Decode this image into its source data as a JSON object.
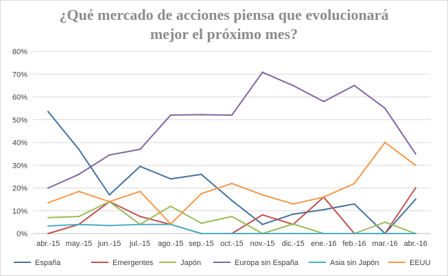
{
  "chart_data": {
    "type": "line",
    "title_line1": "¿Qué mercado de acciones piensa que evolucionará",
    "title_line2": "mejor el próximo mes?",
    "categories": [
      "abr.-15",
      "may.-15",
      "jun.-15",
      "jul.-15",
      "ago.-15",
      "sep.-15",
      "oct.-15",
      "nov.-15",
      "dic.-15",
      "ene.-16",
      "feb.-16",
      "mar.-16",
      "abr.-16"
    ],
    "ylim": [
      0,
      80
    ],
    "yticks": [
      0,
      10,
      20,
      30,
      40,
      50,
      60,
      70,
      80
    ],
    "ytick_labels": [
      "0%",
      "10%",
      "20%",
      "30%",
      "40%",
      "50%",
      "60%",
      "70%",
      "80%"
    ],
    "grid": true,
    "legend_position": "bottom",
    "series": [
      {
        "name": "España",
        "color": "#4472a0",
        "values": [
          53.5,
          37,
          17,
          29.5,
          24,
          26,
          14.5,
          4,
          8.5,
          10.5,
          13,
          0,
          15
        ]
      },
      {
        "name": "Emergentes",
        "color": "#c0504d",
        "values": [
          0,
          4,
          14,
          7.5,
          4,
          0,
          0,
          8.2,
          4,
          16,
          0,
          0,
          20
        ]
      },
      {
        "name": "Japón",
        "color": "#9bbb59",
        "values": [
          7,
          7.5,
          14,
          4,
          12,
          4.5,
          7.5,
          0,
          4.2,
          0,
          0,
          5,
          0
        ]
      },
      {
        "name": "Europa sin España",
        "color": "#8064a2",
        "values": [
          20,
          26,
          34.5,
          37,
          52,
          52.2,
          52,
          70.8,
          65,
          58,
          65,
          55,
          35
        ]
      },
      {
        "name": "Asia sin Japón",
        "color": "#4bacc6",
        "values": [
          3.3,
          4,
          3.5,
          4,
          4,
          0,
          0,
          0,
          0,
          0,
          0,
          0,
          0
        ]
      },
      {
        "name": "EEUU",
        "color": "#f79646",
        "values": [
          13.5,
          18.5,
          14,
          18.5,
          4.2,
          17.5,
          22,
          17,
          13,
          16,
          22,
          40,
          30
        ]
      }
    ]
  }
}
